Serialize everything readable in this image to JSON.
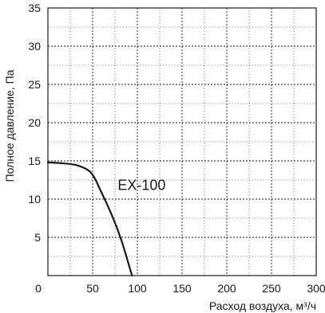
{
  "chart_data": {
    "type": "line",
    "xlabel": "Расход воздуха, м³/ч",
    "ylabel": "Полное давление, Па",
    "xlim": [
      0,
      300
    ],
    "ylim": [
      0,
      35
    ],
    "x_ticks": [
      "0",
      "50",
      "100",
      "150",
      "200",
      "250",
      "300"
    ],
    "y_ticks": [
      "5",
      "10",
      "15",
      "20",
      "25",
      "30",
      "35"
    ],
    "x_minor_step": 25,
    "y_minor_step": 2.5,
    "grid": true,
    "series": [
      {
        "label": "EX-100",
        "color": "#1a1a1a",
        "points": [
          [
            0,
            14.8
          ],
          [
            15,
            14.7
          ],
          [
            30,
            14.5
          ],
          [
            40,
            14.1
          ],
          [
            47,
            13.6
          ],
          [
            52,
            12.8
          ],
          [
            57,
            11.6
          ],
          [
            63,
            10.1
          ],
          [
            70,
            8.3
          ],
          [
            77,
            6.3
          ],
          [
            83,
            4.3
          ],
          [
            88,
            2.4
          ],
          [
            92,
            0.8
          ],
          [
            94,
            0
          ]
        ]
      }
    ],
    "annotations": [
      {
        "text": "EX-100",
        "x": 78,
        "y": 11.2
      }
    ]
  }
}
